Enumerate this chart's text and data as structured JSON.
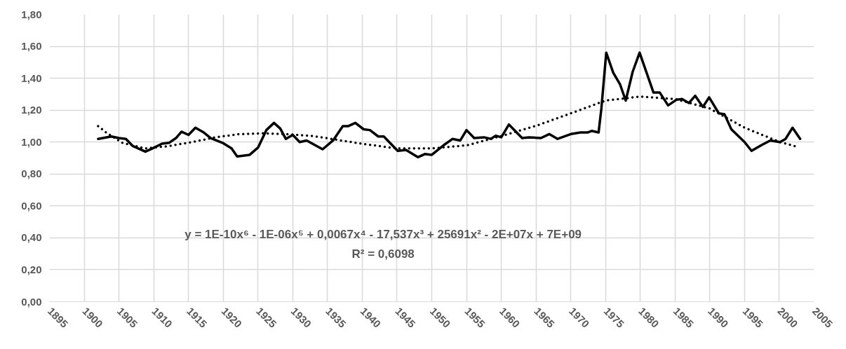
{
  "chart_data": {
    "type": "line",
    "xlim": [
      1895,
      2005
    ],
    "xticks": [
      1895,
      1900,
      1905,
      1910,
      1915,
      1920,
      1925,
      1930,
      1935,
      1940,
      1945,
      1950,
      1955,
      1960,
      1965,
      1970,
      1975,
      1980,
      1985,
      1990,
      1995,
      2000,
      2005
    ],
    "ylim": [
      0,
      1.8
    ],
    "yticks": [
      {
        "value": 0,
        "label": "0,00"
      },
      {
        "value": 0.2,
        "label": "0,20"
      },
      {
        "value": 0.4,
        "label": "0,40"
      },
      {
        "value": 0.6,
        "label": "0,60"
      },
      {
        "value": 0.8,
        "label": "0,80"
      },
      {
        "value": 1.0,
        "label": "1,00"
      },
      {
        "value": 1.2,
        "label": "1,20"
      },
      {
        "value": 1.4,
        "label": "1,40"
      },
      {
        "value": 1.6,
        "label": "1,60"
      },
      {
        "value": 1.8,
        "label": "1,80"
      }
    ],
    "grid": true,
    "annotations": [
      "y = 1E-10x⁶ - 1E-06x⁵ + 0,0067x⁴ - 17,537x³ + 25691x² - 2E+07x + 7E+09",
      "R² = 0,6098"
    ],
    "series": [
      {
        "color": "#000000",
        "line_style": "solid",
        "x": [
          1902,
          1903.9,
          1905,
          1906,
          1907,
          1908.8,
          1909.8,
          1911.2,
          1912.2,
          1913.2,
          1914,
          1915,
          1916,
          1917.2,
          1918.2,
          1919.9,
          1921.2,
          1922,
          1923.8,
          1925,
          1926.2,
          1927.3,
          1928.2,
          1929,
          1930,
          1931,
          1932,
          1934.3,
          1935.8,
          1937.2,
          1938,
          1939,
          1940.2,
          1941.1,
          1942.3,
          1943.1,
          1945.1,
          1946.3,
          1948,
          1949,
          1950,
          1951.7,
          1953,
          1954.1,
          1955,
          1956.1,
          1957.5,
          1958.5,
          1959.2,
          1960,
          1961.1,
          1963,
          1964,
          1965.7,
          1966.9,
          1968.1,
          1970,
          1971.4,
          1972.4,
          1973,
          1974,
          1974.4,
          1975.1,
          1976.1,
          1977.1,
          1977.9,
          1978.9,
          1979.9,
          1981.1,
          1981.9,
          1982.8,
          1984,
          1985.2,
          1986,
          1987,
          1987.9,
          1989,
          1989.9,
          1991.3,
          1992.1,
          1993.1,
          1995,
          1996,
          1997.4,
          1998.7,
          2000.1,
          2000.9,
          2001.9,
          2003
        ],
        "values": [
          1.02,
          1.035,
          1.025,
          1.02,
          0.975,
          0.94,
          0.96,
          0.99,
          0.995,
          1.025,
          1.065,
          1.045,
          1.09,
          1.06,
          1.025,
          0.995,
          0.96,
          0.91,
          0.92,
          0.965,
          1.075,
          1.12,
          1.085,
          1.02,
          1.045,
          1.0,
          1.01,
          0.955,
          1.01,
          1.1,
          1.1,
          1.12,
          1.08,
          1.075,
          1.035,
          1.035,
          0.945,
          0.95,
          0.905,
          0.925,
          0.92,
          0.98,
          1.02,
          1.01,
          1.075,
          1.025,
          1.03,
          1.02,
          1.04,
          1.03,
          1.11,
          1.025,
          1.03,
          1.025,
          1.05,
          1.02,
          1.05,
          1.06,
          1.06,
          1.07,
          1.06,
          1.21,
          1.56,
          1.435,
          1.36,
          1.26,
          1.44,
          1.56,
          1.41,
          1.31,
          1.31,
          1.23,
          1.265,
          1.27,
          1.245,
          1.29,
          1.22,
          1.28,
          1.18,
          1.175,
          1.08,
          1.0,
          0.945,
          0.98,
          1.01,
          1.0,
          1.02,
          1.09,
          1.02
        ]
      },
      {
        "color": "#000000",
        "line_style": "dotted",
        "x": [
          1902,
          1903.3,
          1905.5,
          1908.8,
          1912.2,
          1915.5,
          1918.9,
          1922.3,
          1925.7,
          1929,
          1932.4,
          1934.8,
          1939.9,
          1945,
          1950,
          1955.1,
          1960.2,
          1965.2,
          1970,
          1975,
          1980,
          1985,
          1990,
          1995,
          2000.1,
          2002.6
        ],
        "values": [
          1.1,
          1.055,
          0.995,
          0.96,
          0.975,
          1.0,
          1.03,
          1.05,
          1.055,
          1.05,
          1.04,
          1.025,
          0.99,
          0.96,
          0.96,
          0.98,
          1.04,
          1.105,
          1.18,
          1.26,
          1.285,
          1.27,
          1.21,
          1.09,
          1.0,
          0.97
        ]
      }
    ]
  }
}
